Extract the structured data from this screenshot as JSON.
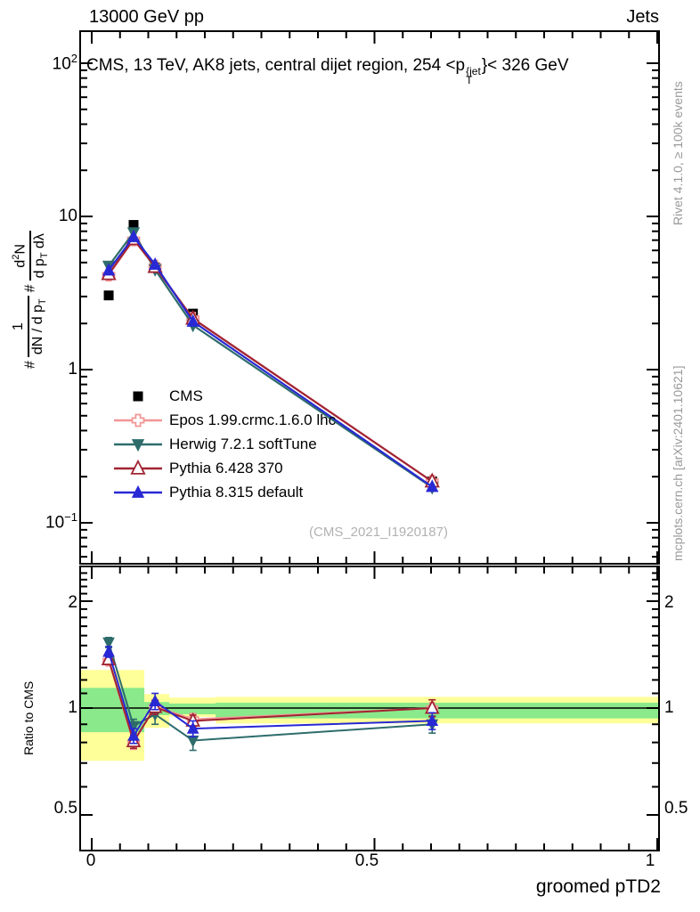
{
  "header": {
    "left": "13000 GeV pp",
    "right": "Jets"
  },
  "title": {
    "pre": "CMS, 13 TeV, AK8 jets, central dijet region, 254 <p",
    "sup": "{jet",
    "sub": "T",
    "post": "}< 326 GeV"
  },
  "ylabel_parts": {
    "hash": "#",
    "f1_num": "1",
    "f1_den_a": "dN / d p",
    "f1_den_sub": "T",
    "f2_num_a": "d",
    "f2_num_sup": "2",
    "f2_num_b": "N",
    "f2_den_a": "d p",
    "f2_den_sub": "T",
    "f2_den_b": " dλ"
  },
  "ticks": {
    "y100_base": "10",
    "y100_exp": "2",
    "y10": "10",
    "y1": "1",
    "y01_base": "10",
    "y01_exp": "−1",
    "r2": "2",
    "r1": "1",
    "r05": "0.5",
    "x0": "0",
    "x05": "0.5",
    "x1": "1"
  },
  "axis_titles": {
    "x": "groomed pTD2",
    "ratio_y": "Ratio to CMS"
  },
  "annotations": {
    "watermark": "(CMS_2021_I1920187)",
    "rivet": "Rivet 4.1.0, ≥ 100k events",
    "mcplots": "mcplots.cern.ch [arXiv:2401.10621]"
  },
  "colors": {
    "cms": "#000000",
    "epos": "#f29696",
    "herwig": "#2e6c6c",
    "pythia6": "#a12433",
    "pythia8": "#2828d4",
    "band_yellow": "#ffff99",
    "band_green": "#8ae98a",
    "frame": "#000000"
  },
  "legend": {
    "items": [
      {
        "label": "CMS",
        "marker": "filled-square",
        "color": "#000000",
        "line": false
      },
      {
        "label": "Epos 1.99.crmc.1.6.0 lhc",
        "marker": "open-cross",
        "color": "#f29696",
        "line": true
      },
      {
        "label": "Herwig 7.2.1 softTune",
        "marker": "filled-triangle-down",
        "color": "#2e6c6c",
        "line": true
      },
      {
        "label": "Pythia 6.428 370",
        "marker": "open-triangle-up",
        "color": "#a12433",
        "line": true
      },
      {
        "label": "Pythia 8.315 default",
        "marker": "filled-triangle-up",
        "color": "#2828d4",
        "line": true
      }
    ]
  },
  "chart_data": [
    {
      "type": "line",
      "panel": "main",
      "title": "CMS, 13 TeV, AK8 jets, central dijet region, 254 < p_T^{jet} < 326 GeV",
      "xlabel": "groomed pTD2",
      "ylabel": "# 1/(dN/dp_T) # d^2N/(dp_T dlambda)",
      "yscale": "log",
      "xlim": [
        -0.02,
        1.003
      ],
      "ylim": [
        0.055,
        160
      ],
      "grid": false,
      "legend_position": "left-middle",
      "x": [
        0.03,
        0.074,
        0.112,
        0.179,
        0.602
      ],
      "series": [
        {
          "name": "CMS",
          "marker": "filled-square",
          "color": "#000000",
          "line": false,
          "values": [
            3.05,
            8.8,
            4.65,
            2.32,
            0.186
          ]
        },
        {
          "name": "Epos 1.99.crmc.1.6.0 lhc",
          "marker": "open-cross",
          "color": "#f29696",
          "line": true,
          "values": [
            4.15,
            7.05,
            4.72,
            2.16,
            0.186
          ]
        },
        {
          "name": "Herwig 7.2.1 softTune",
          "marker": "filled-triangle-down",
          "color": "#2e6c6c",
          "line": true,
          "values": [
            4.75,
            7.85,
            4.5,
            1.95,
            0.17
          ]
        },
        {
          "name": "Pythia 6.428 370",
          "marker": "open-triangle-up",
          "color": "#a12433",
          "line": true,
          "values": [
            4.2,
            7.1,
            4.68,
            2.15,
            0.186
          ]
        },
        {
          "name": "Pythia 8.315 default",
          "marker": "filled-triangle-up",
          "color": "#2828d4",
          "line": true,
          "values": [
            4.45,
            7.35,
            4.85,
            2.06,
            0.172
          ]
        }
      ]
    },
    {
      "type": "line",
      "panel": "ratio",
      "ylabel": "Ratio to CMS",
      "yscale": "log",
      "ylim": [
        0.4,
        2.52
      ],
      "yticks": [
        0.5,
        1,
        2
      ],
      "reference": 1,
      "x": [
        0.03,
        0.074,
        0.112,
        0.179,
        0.602
      ],
      "bands": {
        "yellow": {
          "color": "#ffff99",
          "segments": [
            [
              0,
              0.093,
              0.71,
              1.28
            ],
            [
              0.093,
              0.137,
              0.88,
              1.095
            ],
            [
              0.137,
              0.219,
              0.945,
              1.07
            ],
            [
              0.219,
              1.003,
              0.905,
              1.075
            ]
          ]
        },
        "green": {
          "color": "#8ae98a",
          "segments": [
            [
              0,
              0.093,
              0.855,
              1.14
            ],
            [
              0.093,
              0.137,
              0.955,
              1.04
            ],
            [
              0.137,
              0.219,
              0.96,
              1.03
            ],
            [
              0.219,
              1.003,
              0.935,
              1.035
            ]
          ]
        }
      },
      "series": [
        {
          "name": "Epos 1.99.crmc.1.6.0 lhc",
          "marker": "open-cross",
          "color": "#f29696",
          "values": [
            1.36,
            0.8,
            1.01,
            0.93,
            1.0
          ],
          "errors": [
            0.04,
            0.035,
            0.045,
            0.035,
            0.055
          ]
        },
        {
          "name": "Herwig 7.2.1 softTune",
          "marker": "filled-triangle-down",
          "color": "#2e6c6c",
          "values": [
            1.53,
            0.89,
            0.96,
            0.81,
            0.9
          ],
          "errors": [
            0.05,
            0.04,
            0.06,
            0.05,
            0.05
          ]
        },
        {
          "name": "Pythia 6.428 370",
          "marker": "open-triangle-up",
          "color": "#a12433",
          "values": [
            1.37,
            0.805,
            1.005,
            0.92,
            1.0
          ],
          "errors": [
            0.04,
            0.035,
            0.045,
            0.035,
            0.055
          ]
        },
        {
          "name": "Pythia 8.315 default",
          "marker": "filled-triangle-up",
          "color": "#2828d4",
          "values": [
            1.44,
            0.835,
            1.045,
            0.875,
            0.92
          ],
          "errors": [
            0.05,
            0.04,
            0.055,
            0.045,
            0.05
          ]
        }
      ]
    }
  ]
}
